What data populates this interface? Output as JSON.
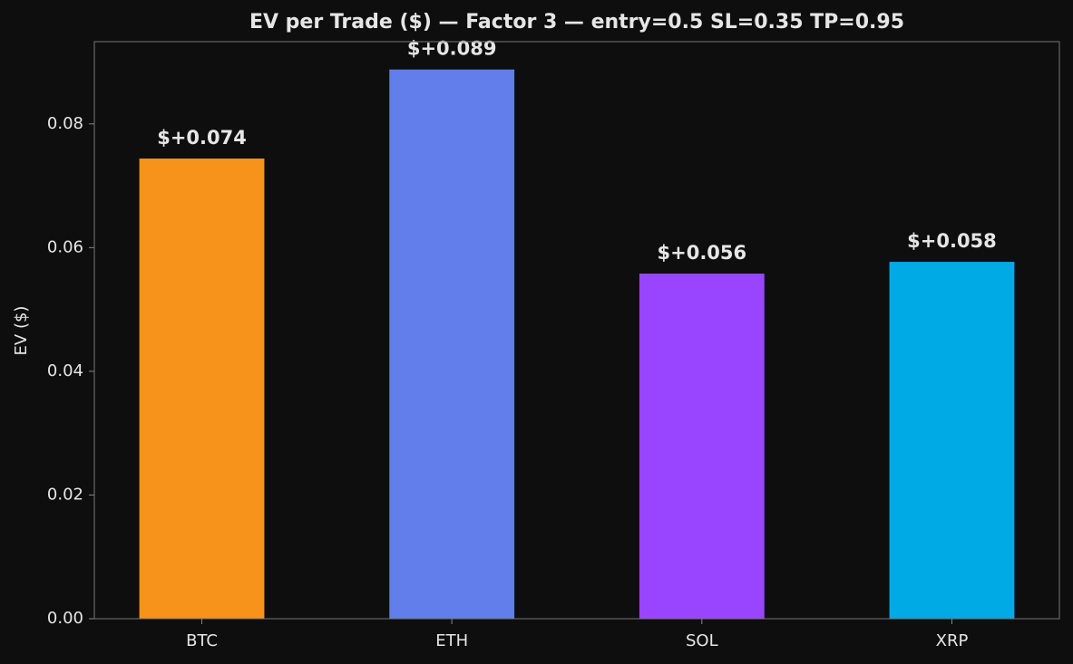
{
  "chart_data": {
    "type": "bar",
    "title": "EV per Trade ($)  —  Factor 3  —  entry=0.5  SL=0.35  TP=0.95",
    "y_label": "EV ($)",
    "categories": [
      "BTC",
      "ETH",
      "SOL",
      "XRP"
    ],
    "values": [
      0.0744,
      0.0888,
      0.0558,
      0.0577
    ],
    "value_labels": [
      "$+0.074",
      "$+0.089",
      "$+0.056",
      "$+0.058"
    ],
    "colors": [
      "#f7931a",
      "#627eea",
      "#9945ff",
      "#00aae4"
    ],
    "ylim": [
      0,
      0.0933
    ],
    "yticks": [
      {
        "value": 0,
        "label": "0.00"
      },
      {
        "value": 0.02,
        "label": "0.02"
      },
      {
        "value": 0.04,
        "label": "0.04"
      },
      {
        "value": 0.06,
        "label": "0.06"
      },
      {
        "value": 0.08,
        "label": "0.08"
      }
    ],
    "grid": false
  }
}
